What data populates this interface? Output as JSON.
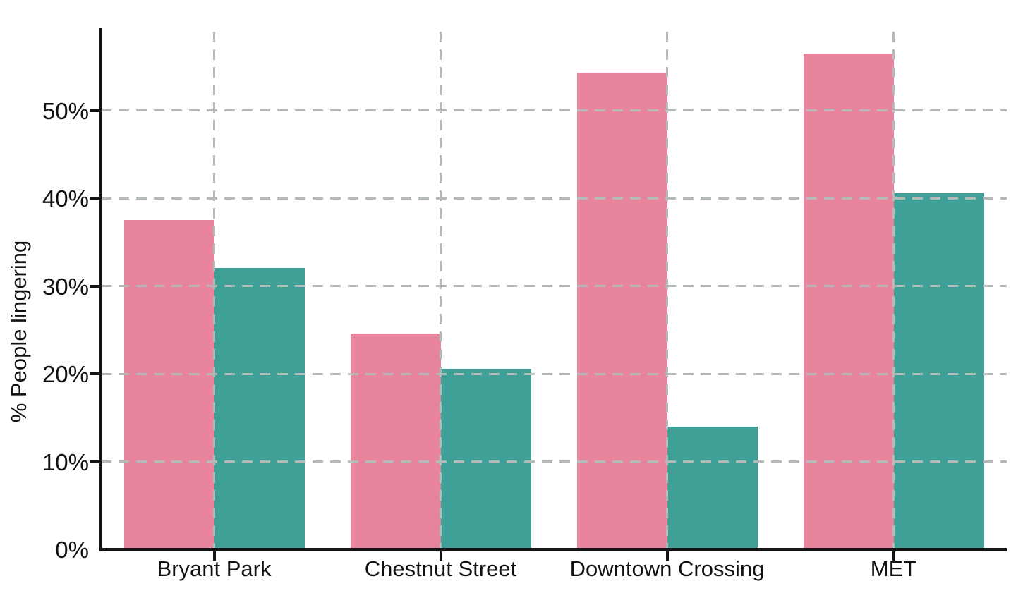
{
  "chart_data": {
    "type": "bar",
    "title": "",
    "xlabel": "",
    "ylabel": "% People lingering",
    "categories": [
      "Bryant Park",
      "Chestnut Street",
      "Downtown Crossing",
      "MET"
    ],
    "series": [
      {
        "name": "pink-series",
        "color": "#E8849B",
        "values": [
          37.5,
          24.6,
          54.3,
          56.5
        ]
      },
      {
        "name": "teal-series",
        "color": "#3FA098",
        "values": [
          32.1,
          20.6,
          14.0,
          40.6
        ]
      }
    ],
    "y_ticks": [
      {
        "value": 0,
        "label": "0%"
      },
      {
        "value": 10,
        "label": "10%"
      },
      {
        "value": 20,
        "label": "20%"
      },
      {
        "value": 30,
        "label": "30%"
      },
      {
        "value": 40,
        "label": "40%"
      },
      {
        "value": 50,
        "label": "50%"
      }
    ],
    "ylim": [
      0,
      59.4
    ],
    "grid": true,
    "legend_position": "none"
  },
  "colors": {
    "grid": "#b4bab8",
    "axis": "#141414"
  }
}
